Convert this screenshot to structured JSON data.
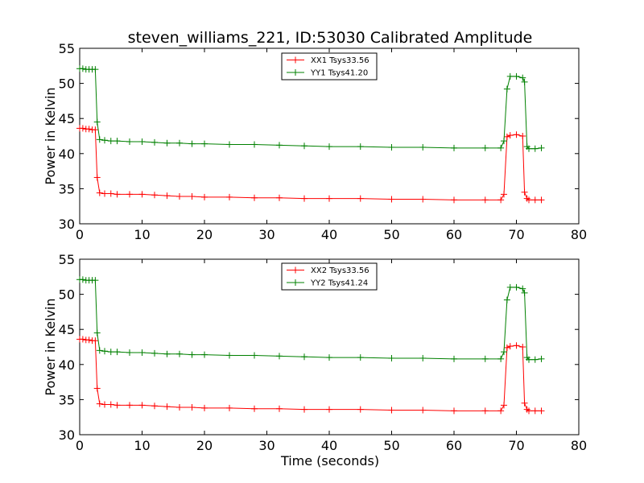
{
  "figure": {
    "title": "steven_williams_221, ID:53030 Calibrated Amplitude",
    "xlabel": "Time (seconds)"
  },
  "colors": {
    "red": "#ff0000",
    "green": "#008000"
  },
  "chart_data": [
    {
      "type": "line",
      "ylabel": "Power in Kelvin",
      "xlim": [
        0,
        80
      ],
      "ylim": [
        30,
        55
      ],
      "xticks": [
        "0",
        "10",
        "20",
        "30",
        "40",
        "50",
        "60",
        "70",
        "80"
      ],
      "yticks": [
        "30",
        "35",
        "40",
        "45",
        "50",
        "55"
      ],
      "legend_position": "upper center",
      "series": [
        {
          "name": "XX1 Tsys33.56",
          "color": "#ff0000",
          "x": [
            0.0,
            0.5,
            1.0,
            1.5,
            2.0,
            2.5,
            2.8,
            3.2,
            4.0,
            5.0,
            6.0,
            8.0,
            10.0,
            12.0,
            14.0,
            16.0,
            18.0,
            20.0,
            24.0,
            28.0,
            32.0,
            36.0,
            40.0,
            45.0,
            50.0,
            55.0,
            60.0,
            65.0,
            67.5,
            68.0,
            68.5,
            69.0,
            70.0,
            71.0,
            71.3,
            71.7,
            72.0,
            73.0,
            74.0
          ],
          "y": [
            43.6,
            43.6,
            43.5,
            43.5,
            43.4,
            43.4,
            36.6,
            34.4,
            34.3,
            34.3,
            34.2,
            34.2,
            34.2,
            34.1,
            34.0,
            33.9,
            33.9,
            33.8,
            33.8,
            33.7,
            33.7,
            33.6,
            33.6,
            33.6,
            33.5,
            33.5,
            33.4,
            33.4,
            33.4,
            34.2,
            42.4,
            42.6,
            42.7,
            42.5,
            34.5,
            33.6,
            33.4,
            33.4,
            33.4
          ]
        },
        {
          "name": "YY1 Tsys41.20",
          "color": "#008000",
          "x": [
            0.0,
            0.5,
            1.0,
            1.5,
            2.0,
            2.5,
            2.8,
            3.2,
            4.0,
            5.0,
            6.0,
            8.0,
            10.0,
            12.0,
            14.0,
            16.0,
            18.0,
            20.0,
            24.0,
            28.0,
            32.0,
            36.0,
            40.0,
            45.0,
            50.0,
            55.0,
            60.0,
            65.0,
            67.5,
            68.0,
            68.5,
            69.0,
            70.0,
            71.0,
            71.3,
            71.7,
            72.0,
            73.0,
            74.0
          ],
          "y": [
            52.1,
            52.1,
            52.0,
            52.0,
            52.0,
            52.0,
            44.5,
            42.0,
            41.9,
            41.8,
            41.8,
            41.7,
            41.7,
            41.6,
            41.5,
            41.5,
            41.4,
            41.4,
            41.3,
            41.3,
            41.2,
            41.1,
            41.0,
            41.0,
            40.9,
            40.9,
            40.8,
            40.8,
            40.8,
            41.8,
            49.2,
            51.0,
            51.0,
            50.8,
            50.2,
            41.0,
            40.7,
            40.7,
            40.8
          ]
        }
      ]
    },
    {
      "type": "line",
      "ylabel": "Power in Kelvin",
      "xlim": [
        0,
        80
      ],
      "ylim": [
        30,
        55
      ],
      "xticks": [
        "0",
        "10",
        "20",
        "30",
        "40",
        "50",
        "60",
        "70",
        "80"
      ],
      "yticks": [
        "30",
        "35",
        "40",
        "45",
        "50",
        "55"
      ],
      "legend_position": "upper center",
      "series": [
        {
          "name": "XX2 Tsys33.56",
          "color": "#ff0000",
          "x": [
            0.0,
            0.5,
            1.0,
            1.5,
            2.0,
            2.5,
            2.8,
            3.2,
            4.0,
            5.0,
            6.0,
            8.0,
            10.0,
            12.0,
            14.0,
            16.0,
            18.0,
            20.0,
            24.0,
            28.0,
            32.0,
            36.0,
            40.0,
            45.0,
            50.0,
            55.0,
            60.0,
            65.0,
            67.5,
            68.0,
            68.5,
            69.0,
            70.0,
            71.0,
            71.3,
            71.7,
            72.0,
            73.0,
            74.0
          ],
          "y": [
            43.6,
            43.6,
            43.5,
            43.5,
            43.4,
            43.4,
            36.6,
            34.4,
            34.3,
            34.3,
            34.2,
            34.2,
            34.2,
            34.1,
            34.0,
            33.9,
            33.9,
            33.8,
            33.8,
            33.7,
            33.7,
            33.6,
            33.6,
            33.6,
            33.5,
            33.5,
            33.4,
            33.4,
            33.4,
            34.2,
            42.4,
            42.6,
            42.7,
            42.5,
            34.5,
            33.6,
            33.4,
            33.4,
            33.4
          ]
        },
        {
          "name": "YY2 Tsys41.24",
          "color": "#008000",
          "x": [
            0.0,
            0.5,
            1.0,
            1.5,
            2.0,
            2.5,
            2.8,
            3.2,
            4.0,
            5.0,
            6.0,
            8.0,
            10.0,
            12.0,
            14.0,
            16.0,
            18.0,
            20.0,
            24.0,
            28.0,
            32.0,
            36.0,
            40.0,
            45.0,
            50.0,
            55.0,
            60.0,
            65.0,
            67.5,
            68.0,
            68.5,
            69.0,
            70.0,
            71.0,
            71.3,
            71.7,
            72.0,
            73.0,
            74.0
          ],
          "y": [
            52.1,
            52.1,
            52.0,
            52.0,
            52.0,
            52.0,
            44.5,
            42.0,
            41.9,
            41.8,
            41.8,
            41.7,
            41.7,
            41.6,
            41.5,
            41.5,
            41.4,
            41.4,
            41.3,
            41.3,
            41.2,
            41.1,
            41.0,
            41.0,
            40.9,
            40.9,
            40.8,
            40.8,
            40.8,
            41.8,
            49.2,
            51.0,
            51.0,
            50.8,
            50.2,
            41.0,
            40.7,
            40.7,
            40.8
          ]
        }
      ]
    }
  ]
}
